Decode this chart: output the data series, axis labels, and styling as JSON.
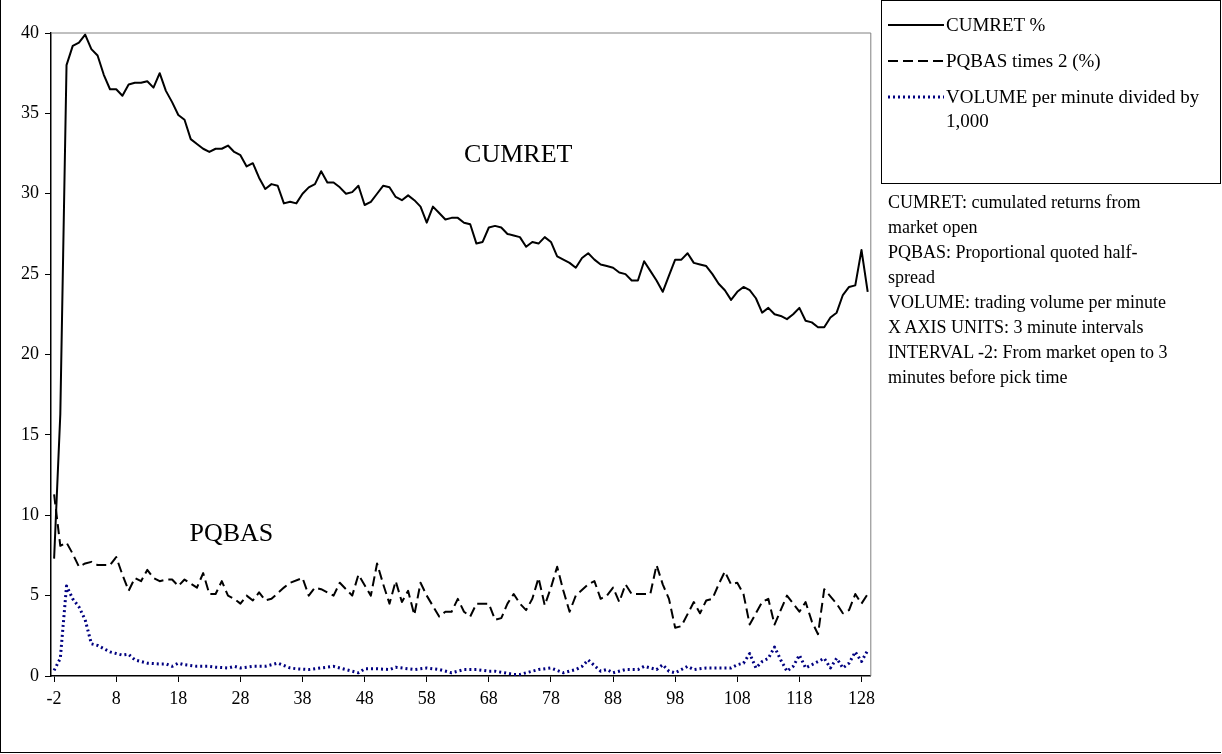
{
  "chart_data": {
    "type": "line",
    "xlim": [
      -2.5,
      129.5
    ],
    "xticks": [
      -2,
      8,
      18,
      28,
      38,
      48,
      58,
      68,
      78,
      88,
      98,
      108,
      118,
      128
    ],
    "ylim": [
      0,
      40
    ],
    "yticks": [
      0,
      5,
      10,
      15,
      20,
      25,
      30,
      35,
      40
    ],
    "grid": false,
    "legend": "top right",
    "marker": "none",
    "annotations": [
      "CUMRET",
      "PQBAS",
      "CUMRET: cumulated returns from market open",
      "PQBAS: Proportional quoted half-spread",
      "VOLUME:  trading volume per minute",
      "X AXIS UNITS: 3 minute intervals",
      "INTERVAL -2: From market open to 3 minutes before pick time"
    ],
    "series": [
      {
        "name": "CUMRET %",
        "color": "#000000",
        "line_style": "solid",
        "x": [
          -2,
          -1,
          0,
          1,
          2,
          3,
          4,
          5,
          6,
          7,
          8,
          9,
          10,
          11,
          12,
          13,
          14,
          15,
          16,
          17,
          18,
          19,
          20,
          21,
          22,
          23,
          24,
          25,
          26,
          27,
          28,
          29,
          30,
          31,
          32,
          33,
          34,
          35,
          36,
          37,
          38,
          39,
          40,
          41,
          42,
          43,
          44,
          45,
          46,
          47,
          48,
          49,
          50,
          51,
          52,
          53,
          54,
          55,
          56,
          57,
          58,
          59,
          60,
          61,
          62,
          63,
          64,
          65,
          66,
          67,
          68,
          69,
          70,
          71,
          72,
          73,
          74,
          75,
          76,
          77,
          78,
          79,
          80,
          81,
          82,
          83,
          84,
          85,
          86,
          87,
          88,
          89,
          90,
          91,
          92,
          93,
          94,
          95,
          96,
          97,
          98,
          99,
          100,
          101,
          102,
          103,
          104,
          105,
          106,
          107,
          108,
          109,
          110,
          111,
          112,
          113,
          114,
          115,
          116,
          117,
          118,
          119,
          120,
          121,
          122,
          123,
          124,
          125,
          126,
          127,
          128,
          129
        ],
        "values": [
          7.3,
          16.3,
          38.0,
          39.2,
          39.4,
          39.9,
          39.0,
          38.6,
          37.4,
          36.5,
          36.5,
          36.1,
          36.8,
          36.9,
          36.9,
          37.0,
          36.6,
          37.5,
          36.4,
          35.7,
          34.9,
          34.6,
          33.4,
          33.1,
          32.8,
          32.6,
          32.8,
          32.8,
          33.0,
          32.6,
          32.4,
          31.7,
          31.9,
          31.0,
          30.3,
          30.6,
          30.5,
          29.4,
          29.5,
          29.4,
          30.0,
          30.4,
          30.6,
          31.4,
          30.7,
          30.7,
          30.4,
          30.0,
          30.1,
          30.5,
          29.3,
          29.5,
          30.0,
          30.5,
          30.4,
          29.8,
          29.6,
          29.9,
          29.6,
          29.2,
          28.2,
          29.2,
          28.8,
          28.4,
          28.5,
          28.5,
          28.2,
          28.1,
          26.9,
          27.0,
          27.9,
          28.0,
          27.9,
          27.5,
          27.4,
          27.3,
          26.7,
          27.0,
          26.9,
          27.3,
          27.0,
          26.1,
          25.9,
          25.7,
          25.4,
          26.0,
          26.3,
          25.9,
          25.6,
          25.5,
          25.4,
          25.1,
          25.0,
          24.6,
          24.6,
          25.8,
          25.2,
          24.6,
          23.9,
          24.9,
          25.9,
          25.9,
          26.3,
          25.7,
          25.6,
          25.5,
          25.0,
          24.4,
          24.0,
          23.4,
          23.9,
          24.2,
          24.0,
          23.5,
          22.6,
          22.9,
          22.5,
          22.4,
          22.2,
          22.5,
          22.9,
          22.1,
          22.0,
          21.7,
          21.7,
          22.3,
          22.6,
          23.7,
          24.2,
          24.3,
          26.5,
          23.9
        ]
      },
      {
        "name": "PQBAS times 2 (%)",
        "color": "#000000",
        "line_style": "dashed",
        "x": [
          -2,
          -1,
          0,
          1,
          2,
          3,
          4,
          5,
          6,
          7,
          8,
          9,
          10,
          11,
          12,
          13,
          14,
          15,
          16,
          17,
          18,
          19,
          21,
          22,
          23,
          24,
          25,
          26,
          27,
          28,
          29,
          30,
          31,
          32,
          33,
          35,
          36,
          38,
          39,
          40,
          41,
          43,
          44,
          46,
          47,
          49,
          50,
          51,
          52,
          53,
          54,
          55,
          56,
          57,
          58,
          60,
          61,
          62,
          63,
          64,
          65,
          66,
          68,
          69,
          70,
          71,
          72,
          73,
          74,
          75,
          76,
          77,
          78,
          79,
          80,
          81,
          82,
          84,
          85,
          86,
          87,
          88,
          89,
          90,
          91,
          93,
          94,
          95,
          96,
          97,
          98,
          99,
          101,
          102,
          103,
          104,
          105,
          106,
          107,
          108,
          109,
          110,
          112,
          113,
          114,
          116,
          118,
          119,
          120,
          121,
          122,
          124,
          125,
          126,
          127,
          128,
          129
        ],
        "values": [
          11.3,
          8.1,
          8.3,
          7.6,
          6.8,
          7.0,
          7.1,
          6.9,
          6.9,
          6.9,
          7.4,
          6.3,
          5.3,
          6.1,
          5.9,
          6.6,
          6.1,
          5.9,
          6.0,
          6.0,
          5.6,
          6.0,
          5.5,
          6.4,
          5.1,
          5.1,
          5.9,
          5.0,
          4.8,
          4.5,
          5.0,
          4.7,
          5.2,
          4.7,
          4.8,
          5.5,
          5.8,
          6.1,
          5.0,
          5.5,
          5.4,
          5.0,
          5.8,
          5.0,
          6.3,
          5.0,
          7.0,
          5.7,
          4.5,
          5.9,
          4.6,
          5.3,
          3.8,
          5.8,
          5.0,
          3.7,
          4.0,
          4.0,
          4.8,
          4.0,
          3.7,
          4.5,
          4.5,
          3.5,
          3.6,
          4.5,
          5.1,
          4.5,
          4.1,
          4.8,
          6.1,
          4.4,
          5.5,
          6.8,
          5.3,
          4.0,
          5.0,
          5.7,
          5.9,
          4.8,
          5.0,
          5.5,
          4.6,
          5.7,
          5.1,
          5.1,
          5.1,
          6.9,
          5.7,
          4.8,
          3.0,
          3.1,
          4.6,
          3.9,
          4.7,
          4.8,
          5.7,
          6.5,
          5.7,
          5.8,
          5.1,
          3.2,
          4.6,
          4.8,
          3.2,
          5.0,
          4.0,
          4.6,
          3.4,
          2.6,
          5.4,
          4.5,
          3.9,
          4.1,
          5.1,
          4.5,
          5.1
        ]
      },
      {
        "name": "VOLUME per minute divided by 1,000",
        "color": "#000080",
        "line_style": "dotted",
        "x": [
          -2,
          -1,
          0,
          1,
          2,
          3,
          4,
          5,
          7,
          8,
          9,
          10,
          11,
          12,
          13,
          15,
          16,
          17,
          18,
          19,
          21,
          22,
          23,
          24,
          26,
          27,
          28,
          30,
          31,
          32,
          34,
          36,
          37,
          39,
          41,
          43,
          45,
          47,
          48,
          50,
          52,
          53,
          55,
          56,
          58,
          60,
          62,
          64,
          66,
          68,
          69,
          72,
          73,
          75,
          76,
          78,
          80,
          82,
          83,
          84,
          86,
          87,
          88,
          90,
          92,
          93,
          95,
          96,
          97,
          98,
          100,
          101,
          103,
          104,
          106,
          107,
          108,
          109,
          110,
          111,
          112,
          113,
          114,
          115,
          116,
          117,
          118,
          119,
          120,
          122,
          123,
          124,
          125,
          126,
          127,
          128,
          129
        ],
        "values": [
          0.35,
          1.1,
          5.6,
          4.8,
          4.3,
          3.5,
          2.0,
          1.9,
          1.5,
          1.4,
          1.3,
          1.35,
          1.0,
          0.9,
          0.8,
          0.75,
          0.75,
          0.6,
          0.8,
          0.7,
          0.6,
          0.6,
          0.6,
          0.55,
          0.5,
          0.6,
          0.5,
          0.6,
          0.6,
          0.6,
          0.8,
          0.5,
          0.45,
          0.4,
          0.5,
          0.6,
          0.4,
          0.2,
          0.45,
          0.45,
          0.4,
          0.55,
          0.45,
          0.4,
          0.5,
          0.4,
          0.2,
          0.4,
          0.4,
          0.3,
          0.3,
          0.1,
          0.1,
          0.3,
          0.4,
          0.5,
          0.2,
          0.4,
          0.6,
          1.0,
          0.3,
          0.4,
          0.2,
          0.4,
          0.4,
          0.6,
          0.4,
          0.7,
          0.3,
          0.2,
          0.6,
          0.4,
          0.5,
          0.5,
          0.5,
          0.5,
          0.7,
          0.8,
          1.4,
          0.5,
          0.9,
          1.1,
          1.8,
          1.0,
          0.3,
          0.6,
          1.3,
          0.5,
          0.7,
          1.1,
          0.5,
          1.1,
          0.5,
          0.8,
          1.5,
          0.9,
          1.6
        ]
      }
    ]
  }
}
